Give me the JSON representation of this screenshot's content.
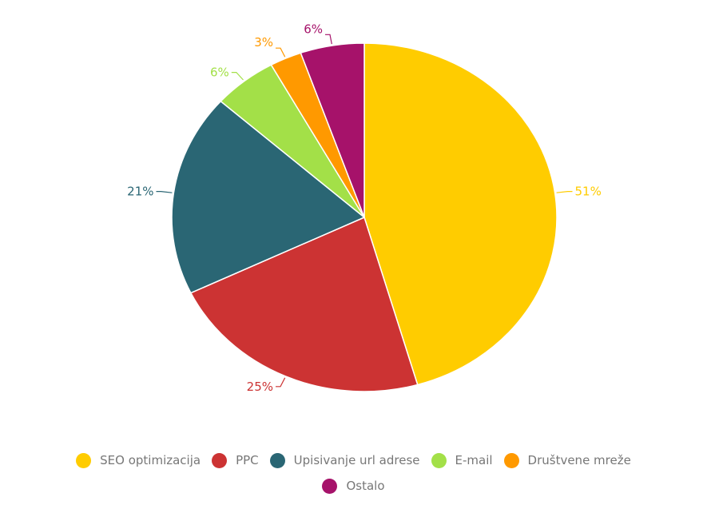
{
  "chart_data": {
    "type": "pie",
    "title": "",
    "slices": [
      {
        "label": "SEO optimizacija",
        "value": 51,
        "display": "51%",
        "color": "#ffcc00"
      },
      {
        "label": "PPC",
        "value": 25,
        "display": "25%",
        "color": "#cc3333"
      },
      {
        "label": "Upisivanje url adrese",
        "value": 21,
        "display": "21%",
        "color": "#2a6674"
      },
      {
        "label": "E-mail",
        "value": 6,
        "display": "6%",
        "color": "#a3e048"
      },
      {
        "label": "Društvene mreže",
        "value": 3,
        "display": "3%",
        "color": "#ff9900"
      },
      {
        "label": "Ostalo",
        "value": 6,
        "display": "6%",
        "color": "#a6126a"
      }
    ],
    "legend_placement": "bottom"
  }
}
